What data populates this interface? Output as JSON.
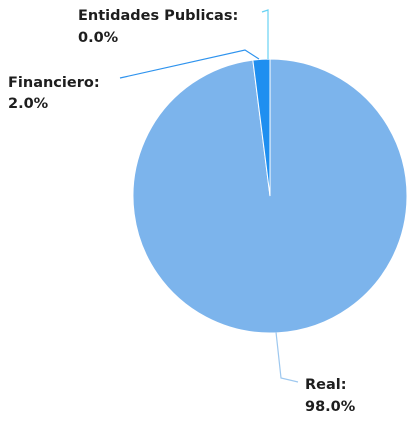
{
  "chart_data": {
    "type": "pie",
    "categories": [
      "Real",
      "Financiero",
      "Entidades Publicas"
    ],
    "values": [
      98.0,
      2.0,
      0.0
    ],
    "value_labels": [
      "98.0%",
      "2.0%",
      "0.0%"
    ],
    "colors": [
      "#7cb4ec",
      "#1f8ff0",
      "#64d3f5"
    ],
    "connector_colors": [
      "#9ec8ef",
      "#2e93ee",
      "#67d2f3"
    ],
    "label_color": "#1e1e1e",
    "legend": "none",
    "grid": false
  }
}
